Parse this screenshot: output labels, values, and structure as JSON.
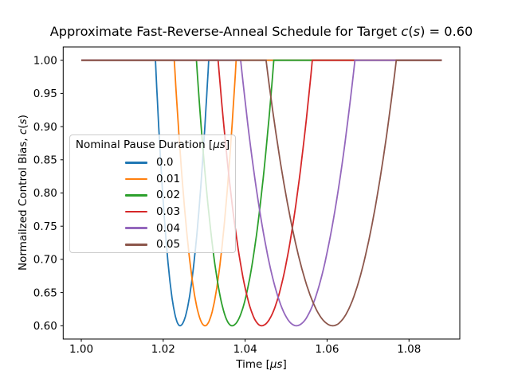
{
  "labels": {
    "title": [
      {
        "t": "Approximate Fast-Reverse-Anneal Schedule for Target ",
        "i": false
      },
      {
        "t": "c",
        "i": true
      },
      {
        "t": "(",
        "i": false
      },
      {
        "t": "s",
        "i": true
      },
      {
        "t": ") = 0.60",
        "i": false
      }
    ],
    "xlabel": [
      {
        "t": "Time [",
        "i": false
      },
      {
        "t": "μs",
        "i": true
      },
      {
        "t": "]",
        "i": false
      }
    ],
    "ylabel": [
      {
        "t": "Normailzed Control Bias, ",
        "i": false
      },
      {
        "t": "c",
        "i": true
      },
      {
        "t": "(",
        "i": false
      },
      {
        "t": "s",
        "i": true
      },
      {
        "t": ")",
        "i": false
      }
    ],
    "legend_title": [
      {
        "t": "Nominal Pause Duration [",
        "i": false
      },
      {
        "t": "μs",
        "i": true
      },
      {
        "t": "]",
        "i": false
      }
    ]
  },
  "colors": {
    "axis": "#000000",
    "text": "#000000",
    "legend_edge": "#cccccc",
    "legend_bg_alpha": 0.8,
    "background": "#ffffff"
  },
  "chart_data": {
    "type": "line",
    "title": "Approximate Fast-Reverse-Anneal Schedule for Target c(s) = 0.60",
    "xlabel": "Time [μs]",
    "ylabel": "Normailzed Control Bias, c(s)",
    "target_value": 0.6,
    "xlim": [
      0.99558,
      1.0924
    ],
    "ylim": [
      0.58,
      1.02
    ],
    "grid": false,
    "xticks": [
      {
        "v": 1.0,
        "label": "1.00"
      },
      {
        "v": 1.02,
        "label": "1.02"
      },
      {
        "v": 1.04,
        "label": "1.04"
      },
      {
        "v": 1.06,
        "label": "1.06"
      },
      {
        "v": 1.08,
        "label": "1.08"
      }
    ],
    "yticks": [
      {
        "v": 0.6,
        "label": "0.60"
      },
      {
        "v": 0.65,
        "label": "0.65"
      },
      {
        "v": 0.7,
        "label": "0.70"
      },
      {
        "v": 0.75,
        "label": "0.75"
      },
      {
        "v": 0.8,
        "label": "0.80"
      },
      {
        "v": 0.85,
        "label": "0.85"
      },
      {
        "v": 0.9,
        "label": "0.90"
      },
      {
        "v": 0.95,
        "label": "0.95"
      },
      {
        "v": 1.0,
        "label": "1.00"
      }
    ],
    "legend": {
      "title": "Nominal Pause Duration [μs]",
      "position": "center left"
    },
    "t_start": 1.0,
    "t_end": 1.088,
    "flat_value": 1.0,
    "min_value": 0.6,
    "shape_note": "c(t)=1.0 outside [t_depart,t_return]; inside, parabolic dip to 0.6 at t_min (clipped parabola, sharp corners at 1.0)",
    "series": [
      {
        "name": "0.0",
        "color": "#1f77b4",
        "t_depart": 1.0181,
        "t_min": 1.0241,
        "t_return": 1.0311
      },
      {
        "name": "0.01",
        "color": "#ff7f0e",
        "t_depart": 1.0227,
        "t_min": 1.0302,
        "t_return": 1.0378
      },
      {
        "name": "0.02",
        "color": "#2ca02c",
        "t_depart": 1.0281,
        "t_min": 1.0368,
        "t_return": 1.047
      },
      {
        "name": "0.03",
        "color": "#d62728",
        "t_depart": 1.0334,
        "t_min": 1.044,
        "t_return": 1.0564
      },
      {
        "name": "0.04",
        "color": "#9467bd",
        "t_depart": 1.0389,
        "t_min": 1.0525,
        "t_return": 1.0668
      },
      {
        "name": "0.05",
        "color": "#8c564b",
        "t_depart": 1.0451,
        "t_min": 1.0614,
        "t_return": 1.0769
      }
    ]
  }
}
